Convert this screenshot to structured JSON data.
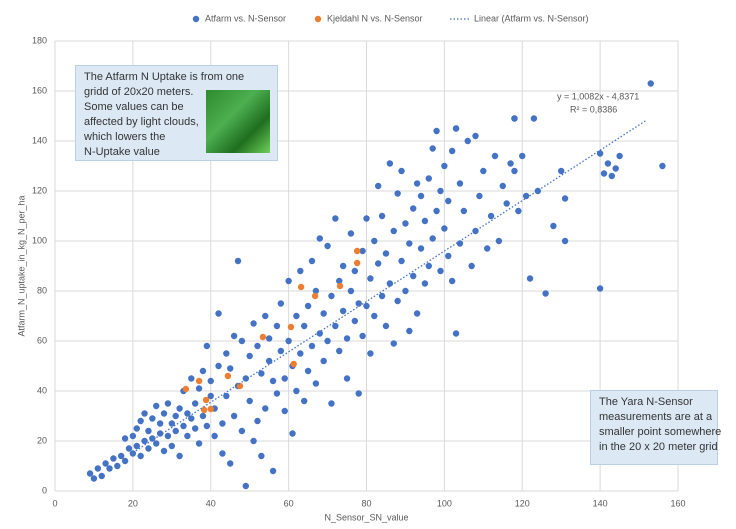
{
  "chart_data": {
    "type": "scatter",
    "x_label": "N_Sensor_SN_value",
    "y_label": "Atfarm_N_uptake_in_kg_N_per_ha",
    "xlim": [
      0,
      160
    ],
    "ylim": [
      0,
      180
    ],
    "xticks": [
      0,
      20,
      40,
      60,
      80,
      100,
      120,
      140,
      160
    ],
    "yticks": [
      0,
      20,
      40,
      60,
      80,
      100,
      120,
      140,
      160,
      180
    ],
    "grid": true,
    "legend": "top",
    "series": [
      {
        "name": "Atfarm vs. N-Sensor",
        "color": "#4472c4",
        "kind": "points",
        "x": [
          9,
          10,
          11,
          12,
          13,
          14,
          15,
          16,
          17,
          18,
          18,
          19,
          20,
          20,
          21,
          21,
          22,
          22,
          23,
          23,
          24,
          24,
          25,
          25,
          26,
          26,
          27,
          27,
          28,
          28,
          29,
          29,
          30,
          30,
          31,
          31,
          32,
          32,
          33,
          33,
          34,
          34,
          35,
          35,
          36,
          36,
          37,
          37,
          38,
          38,
          39,
          39,
          40,
          40,
          41,
          41,
          42,
          42,
          43,
          43,
          44,
          44,
          45,
          45,
          46,
          46,
          47,
          47,
          48,
          48,
          49,
          49,
          50,
          50,
          51,
          51,
          52,
          52,
          53,
          53,
          54,
          54,
          55,
          55,
          56,
          56,
          57,
          57,
          58,
          58,
          59,
          59,
          60,
          60,
          61,
          61,
          62,
          62,
          63,
          63,
          64,
          64,
          65,
          65,
          66,
          66,
          67,
          67,
          68,
          68,
          69,
          69,
          70,
          70,
          71,
          71,
          72,
          72,
          73,
          73,
          74,
          74,
          75,
          75,
          76,
          76,
          77,
          77,
          78,
          78,
          79,
          79,
          80,
          80,
          81,
          81,
          82,
          82,
          83,
          83,
          84,
          84,
          85,
          85,
          86,
          86,
          87,
          87,
          88,
          88,
          89,
          89,
          90,
          90,
          91,
          91,
          92,
          92,
          93,
          93,
          94,
          94,
          95,
          95,
          96,
          96,
          97,
          97,
          98,
          98,
          99,
          99,
          100,
          100,
          101,
          101,
          102,
          102,
          103,
          103,
          104,
          104,
          105,
          106,
          107,
          108,
          108,
          109,
          110,
          111,
          112,
          113,
          114,
          115,
          116,
          117,
          118,
          118,
          119,
          120,
          121,
          122,
          123,
          124,
          126,
          128,
          130,
          131,
          131,
          140,
          140,
          141,
          142,
          143,
          144,
          145,
          153,
          156,
          103,
          118
        ],
        "values": [
          7,
          5,
          9,
          6,
          11,
          9,
          13,
          10,
          14,
          21,
          12,
          17,
          15,
          22,
          18,
          25,
          14,
          28,
          20,
          31,
          17,
          24,
          21,
          29,
          19,
          34,
          23,
          27,
          16,
          31,
          22,
          35,
          18,
          27,
          30,
          24,
          33,
          14,
          26,
          40,
          22,
          31,
          29,
          45,
          25,
          35,
          19,
          41,
          30,
          48,
          26,
          58,
          38,
          44,
          22,
          33,
          71,
          50,
          15,
          27,
          38,
          55,
          11,
          49,
          30,
          62,
          92,
          42,
          24,
          60,
          2,
          45,
          36,
          54,
          20,
          67,
          28,
          58,
          14,
          47,
          33,
          70,
          52,
          61,
          8,
          44,
          39,
          66,
          56,
          75,
          45,
          32,
          60,
          84,
          50,
          23,
          70,
          40,
          55,
          88,
          66,
          36,
          74,
          48,
          58,
          92,
          80,
          43,
          63,
          101,
          71,
          52,
          98,
          60,
          78,
          35,
          109,
          66,
          84,
          56,
          72,
          90,
          61,
          45,
          80,
          103,
          68,
          88,
          39,
          75,
          62,
          96,
          109,
          74,
          85,
          55,
          100,
          70,
          122,
          91,
          78,
          110,
          95,
          66,
          131,
          83,
          104,
          59,
          119,
          76,
          92,
          128,
          80,
          107,
          64,
          99,
          113,
          86,
          123,
          71,
          97,
          118,
          83,
          108,
          125,
          90,
          101,
          137,
          144,
          112,
          88,
          120,
          105,
          130,
          94,
          116,
          84,
          136,
          145,
          63,
          99,
          123,
          112,
          140,
          90,
          142,
          104,
          118,
          128,
          97,
          110,
          134,
          100,
          122,
          115,
          131,
          149,
          128,
          112,
          134,
          118,
          85,
          149,
          120,
          79,
          106,
          128,
          117,
          100,
          81,
          135,
          127,
          131,
          126,
          129,
          134,
          163,
          130,
          145,
          149
        ]
      },
      {
        "name": "Kjeldahl N vs. N-Sensor",
        "color": "#ed7d31",
        "kind": "points",
        "x": [
          63.2,
          73.2,
          77.6,
          77.6,
          66.8,
          60.6,
          53.4,
          61.3,
          44.4,
          47.5,
          33.6,
          37,
          38.8,
          40,
          38.3
        ],
        "values": [
          81.6,
          82,
          96,
          91.2,
          78,
          65.6,
          61.6,
          50.8,
          46,
          42,
          40.8,
          44,
          36.4,
          32.8,
          32.4
        ]
      },
      {
        "name": "Linear (Atfarm vs. N-Sensor)",
        "color": "#4472c4",
        "kind": "trendline",
        "x": [
          20,
          152
        ],
        "values": [
          15.33,
          148.41
        ]
      }
    ],
    "annotations": [
      "y = 1,0082x - 4,8371",
      "R² = 0,8386"
    ],
    "text_boxes": [
      {
        "lines": [
          "The Atfarm N Uptake is from one",
          "gridd of 20x20 meters.",
          "Some values can be",
          "affected by light clouds,",
          "which lowers the",
          "N-Uptake value"
        ]
      },
      {
        "lines": [
          "The Yara N-Sensor",
          "measurements are at a",
          "smaller point somewhere",
          "in the 20 x 20 meter grid"
        ]
      }
    ]
  }
}
